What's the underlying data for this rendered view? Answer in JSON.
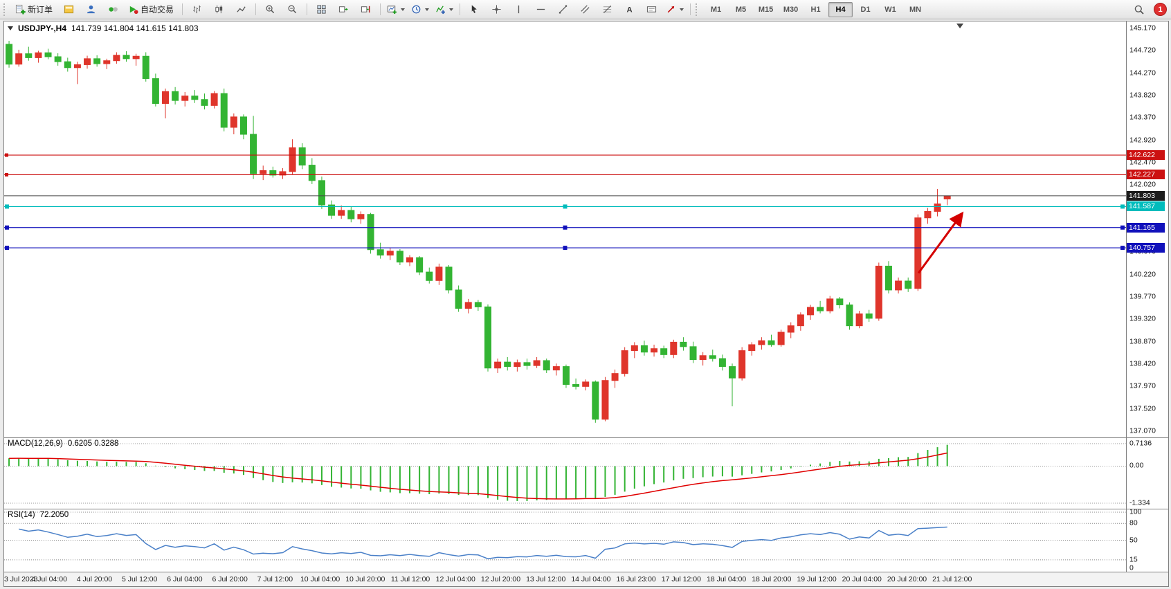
{
  "toolbar": {
    "new_order_label": "新订单",
    "autotrading_label": "自动交易",
    "timeframes": [
      "M1",
      "M5",
      "M15",
      "M30",
      "H1",
      "H4",
      "D1",
      "W1",
      "MN"
    ],
    "active_timeframe": "H4",
    "notification_count": "1"
  },
  "chart": {
    "header": {
      "symbol": "USDJPY-,H4",
      "ohlc": "141.739 141.804 141.615 141.803"
    },
    "price_axis_labels": [
      "145.170",
      "144.720",
      "144.270",
      "143.820",
      "143.370",
      "142.920",
      "142.470",
      "142.020",
      "141.570",
      "141.120",
      "140.670",
      "140.220",
      "139.770",
      "139.320",
      "138.870",
      "138.420",
      "137.970",
      "137.520",
      "137.070"
    ]
  },
  "indicators": {
    "macd": {
      "label": "MACD(12,26,9)",
      "values": "0.6205 0.3288",
      "axis": [
        "0.7136",
        "0.00",
        "-1.334"
      ]
    },
    "rsi": {
      "label": "RSI(14)",
      "value": "72.2050",
      "axis": [
        "100",
        "80",
        "50",
        "15",
        "0"
      ],
      "levels": [
        80,
        50,
        15
      ]
    }
  },
  "chart_data": {
    "type": "candlestick",
    "title": "USDJPY-,H4",
    "symbol": "USDJPY",
    "timeframe": "H4",
    "price_range": {
      "max": 145.17,
      "min": 137.07
    },
    "colors": {
      "bull": "#df352b",
      "bear": "#33b433",
      "macd_hist": "#33b433",
      "macd_signal": "#e00000",
      "rsi": "#4a80c8",
      "current_price": "#444444",
      "arrow": "#d40000"
    },
    "candles": [
      [
        144.85,
        144.92,
        144.38,
        144.45
      ],
      [
        144.45,
        144.74,
        144.4,
        144.66
      ],
      [
        144.66,
        144.8,
        144.52,
        144.58
      ],
      [
        144.58,
        144.72,
        144.48,
        144.68
      ],
      [
        144.68,
        144.76,
        144.55,
        144.6
      ],
      [
        144.6,
        144.67,
        144.42,
        144.5
      ],
      [
        144.5,
        144.58,
        144.3,
        144.38
      ],
      [
        144.38,
        144.5,
        144.05,
        144.44
      ],
      [
        144.44,
        144.62,
        144.36,
        144.56
      ],
      [
        144.56,
        144.63,
        144.4,
        144.46
      ],
      [
        144.46,
        144.56,
        144.35,
        144.52
      ],
      [
        144.52,
        144.69,
        144.46,
        144.63
      ],
      [
        144.63,
        144.71,
        144.5,
        144.56
      ],
      [
        144.56,
        144.66,
        144.42,
        144.61
      ],
      [
        144.61,
        144.69,
        144.1,
        144.16
      ],
      [
        144.16,
        144.26,
        143.6,
        143.66
      ],
      [
        143.66,
        143.96,
        143.36,
        143.9
      ],
      [
        143.9,
        143.99,
        143.64,
        143.72
      ],
      [
        143.72,
        143.89,
        143.6,
        143.81
      ],
      [
        143.81,
        143.93,
        143.67,
        143.74
      ],
      [
        143.74,
        143.86,
        143.54,
        143.62
      ],
      [
        143.62,
        143.91,
        143.56,
        143.86
      ],
      [
        143.86,
        143.96,
        143.1,
        143.18
      ],
      [
        143.18,
        143.46,
        143.04,
        143.39
      ],
      [
        143.39,
        143.44,
        142.94,
        143.04
      ],
      [
        143.04,
        143.41,
        142.14,
        142.25
      ],
      [
        142.25,
        142.41,
        142.12,
        142.31
      ],
      [
        142.31,
        142.39,
        142.17,
        142.22
      ],
      [
        142.22,
        142.36,
        142.14,
        142.29
      ],
      [
        142.29,
        142.94,
        142.24,
        142.77
      ],
      [
        142.77,
        142.86,
        142.34,
        142.42
      ],
      [
        142.42,
        142.56,
        142.04,
        142.11
      ],
      [
        142.11,
        142.19,
        141.54,
        141.62
      ],
      [
        141.62,
        141.71,
        141.34,
        141.41
      ],
      [
        141.41,
        141.61,
        141.34,
        141.51
      ],
      [
        141.51,
        141.59,
        141.27,
        141.34
      ],
      [
        141.34,
        141.49,
        141.24,
        141.43
      ],
      [
        141.43,
        141.46,
        140.64,
        140.72
      ],
      [
        140.72,
        140.86,
        140.54,
        140.61
      ],
      [
        140.61,
        140.76,
        140.51,
        140.69
      ],
      [
        140.69,
        140.73,
        140.41,
        140.47
      ],
      [
        140.47,
        140.61,
        140.39,
        140.56
      ],
      [
        140.56,
        140.59,
        140.21,
        140.27
      ],
      [
        140.27,
        140.36,
        140.04,
        140.1
      ],
      [
        140.1,
        140.44,
        140.01,
        140.37
      ],
      [
        140.37,
        140.41,
        139.84,
        139.91
      ],
      [
        139.91,
        140.0,
        139.47,
        139.54
      ],
      [
        139.54,
        139.73,
        139.44,
        139.66
      ],
      [
        139.66,
        139.71,
        139.49,
        139.57
      ],
      [
        139.57,
        139.62,
        138.27,
        138.34
      ],
      [
        138.34,
        138.53,
        138.24,
        138.46
      ],
      [
        138.46,
        138.56,
        138.29,
        138.37
      ],
      [
        138.37,
        138.51,
        138.27,
        138.45
      ],
      [
        138.45,
        138.53,
        138.31,
        138.39
      ],
      [
        138.39,
        138.56,
        138.34,
        138.49
      ],
      [
        138.49,
        138.53,
        138.24,
        138.3
      ],
      [
        138.3,
        138.43,
        138.19,
        138.37
      ],
      [
        138.37,
        138.41,
        137.94,
        138.01
      ],
      [
        138.01,
        138.13,
        137.91,
        137.97
      ],
      [
        137.97,
        138.11,
        137.89,
        138.06
      ],
      [
        138.06,
        138.09,
        137.24,
        137.31
      ],
      [
        137.31,
        138.16,
        137.27,
        138.09
      ],
      [
        138.09,
        138.31,
        137.94,
        138.23
      ],
      [
        138.23,
        138.76,
        138.17,
        138.69
      ],
      [
        138.69,
        138.86,
        138.54,
        138.79
      ],
      [
        138.79,
        138.89,
        138.59,
        138.66
      ],
      [
        138.66,
        138.81,
        138.57,
        138.73
      ],
      [
        138.73,
        138.79,
        138.54,
        138.61
      ],
      [
        138.61,
        138.91,
        138.54,
        138.86
      ],
      [
        138.86,
        138.96,
        138.69,
        138.77
      ],
      [
        138.77,
        138.87,
        138.44,
        138.51
      ],
      [
        138.51,
        138.66,
        138.39,
        138.59
      ],
      [
        138.59,
        138.71,
        138.47,
        138.53
      ],
      [
        138.53,
        138.61,
        138.29,
        138.37
      ],
      [
        138.37,
        138.43,
        137.57,
        138.14
      ],
      [
        138.14,
        138.76,
        138.09,
        138.69
      ],
      [
        138.69,
        138.86,
        138.59,
        138.81
      ],
      [
        138.81,
        138.96,
        138.71,
        138.89
      ],
      [
        138.89,
        139.01,
        138.77,
        138.81
      ],
      [
        138.81,
        139.11,
        138.77,
        139.06
      ],
      [
        139.06,
        139.26,
        138.94,
        139.19
      ],
      [
        139.19,
        139.46,
        139.09,
        139.41
      ],
      [
        139.41,
        139.61,
        139.31,
        139.56
      ],
      [
        139.56,
        139.69,
        139.44,
        139.49
      ],
      [
        139.49,
        139.79,
        139.44,
        139.73
      ],
      [
        139.73,
        139.77,
        139.54,
        139.61
      ],
      [
        139.61,
        139.66,
        139.11,
        139.19
      ],
      [
        139.19,
        139.49,
        139.14,
        139.43
      ],
      [
        139.43,
        139.51,
        139.27,
        139.34
      ],
      [
        139.34,
        140.46,
        139.29,
        140.39
      ],
      [
        140.39,
        140.49,
        139.84,
        139.91
      ],
      [
        139.91,
        140.16,
        139.84,
        140.09
      ],
      [
        140.09,
        140.16,
        139.87,
        139.94
      ],
      [
        139.94,
        141.43,
        139.89,
        141.36
      ],
      [
        141.36,
        141.56,
        141.24,
        141.49
      ],
      [
        141.49,
        141.94,
        141.39,
        141.64
      ],
      [
        141.739,
        141.804,
        141.615,
        141.803
      ]
    ],
    "x_labels": [
      "3 Jul 2023",
      "4 Jul 04:00",
      "4 Jul 20:00",
      "5 Jul 12:00",
      "6 Jul 04:00",
      "6 Jul 20:00",
      "7 Jul 12:00",
      "10 Jul 04:00",
      "10 Jul 20:00",
      "11 Jul 12:00",
      "12 Jul 04:00",
      "12 Jul 20:00",
      "13 Jul 12:00",
      "14 Jul 04:00",
      "16 Jul 23:00",
      "17 Jul 12:00",
      "18 Jul 04:00",
      "18 Jul 20:00",
      "19 Jul 12:00",
      "20 Jul 04:00",
      "20 Jul 20:00",
      "21 Jul 12:00"
    ],
    "hlines": [
      {
        "price": 142.622,
        "label": "142.622",
        "color": "#cc1111",
        "handles": false
      },
      {
        "price": 142.227,
        "label": "142.227",
        "color": "#cc1111",
        "handles": false
      },
      {
        "price": 141.587,
        "label": "141.587",
        "color": "#00bcbc",
        "handles": true
      },
      {
        "price": 141.165,
        "label": "141.165",
        "color": "#1111bb",
        "handles": true
      },
      {
        "price": 140.757,
        "label": "140.757",
        "color": "#1111bb",
        "handles": true
      }
    ],
    "current_price": {
      "price": 141.803,
      "label": "141.803"
    },
    "arrow": {
      "x1_frac": 0.815,
      "price1": 140.25,
      "x2_frac": 0.853,
      "price2": 141.42
    },
    "shift_marker_frac": 0.852
  }
}
